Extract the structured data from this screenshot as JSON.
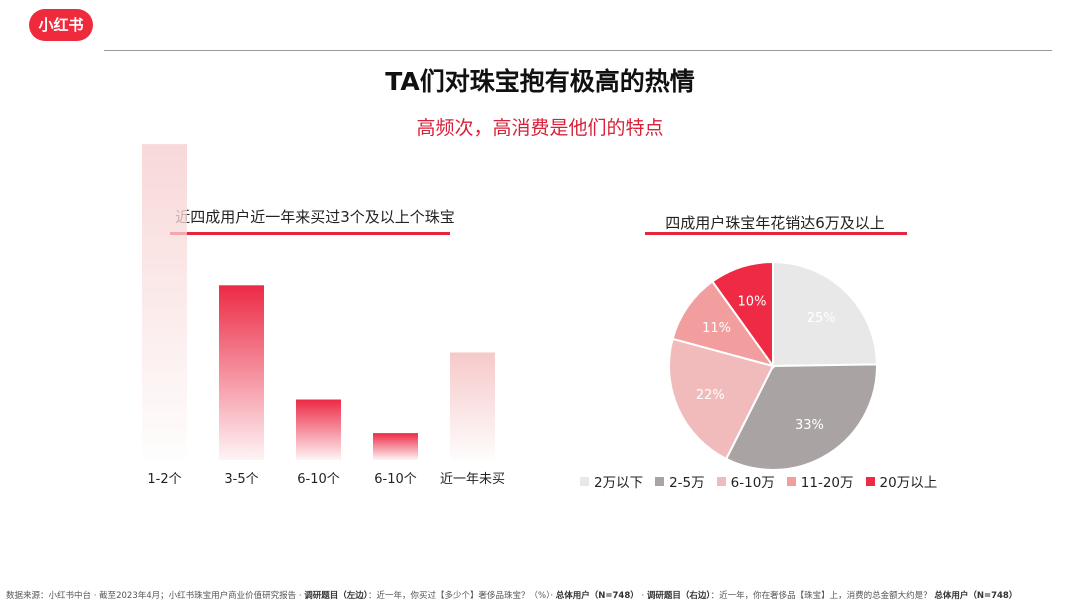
{
  "brand": {
    "logo_text": "小红书",
    "logo_color": "#ee2a3c"
  },
  "header": {
    "title": "TA们对珠宝抱有极高的热情",
    "subtitle": "高频次，高消费是他们的特点"
  },
  "chart_data": [
    {
      "type": "bar",
      "title": "近四成用户近一年来买过3个及以上个珠宝",
      "categories": [
        "1-2个",
        "3-5个",
        "6-10个",
        "6-10个",
        "近一年未买"
      ],
      "values": [
        47,
        26,
        9,
        4,
        16
      ],
      "data_labels": [
        "",
        "",
        "",
        "",
        ""
      ],
      "ylim": [
        0,
        50
      ],
      "grid": false,
      "colors": [
        "#f8d8d8",
        "#ec2a45",
        "#ec2a45",
        "#ec2a45",
        "#f6c9c9"
      ]
    },
    {
      "type": "pie",
      "title": "四成用户珠宝年花销达6万及以上",
      "categories": [
        "2万以下",
        "2-5万",
        "6-10万",
        "11-20万",
        "20万以上"
      ],
      "values": [
        25,
        33,
        22,
        11,
        10
      ],
      "data_labels": [
        "25%",
        "33%",
        "22%",
        "11%",
        "10%"
      ],
      "colors": [
        "#e8e8e8",
        "#aaa3a3",
        "#f2bbbb",
        "#f29e9e",
        "#ee2a45"
      ],
      "label_colors": [
        "#ffffff",
        "#ffffff",
        "#ffffff",
        "#ffffff",
        "#ffffff"
      ],
      "legend_position": "bottom"
    }
  ],
  "footer": {
    "prefix": "数据来源：小红书中台 · 截至2023年4月；小红书珠宝用户商业价值研究报告 · ",
    "left_q_label": "调研题目（左边）",
    "left_q_text": "：近一年，你买过【多少个】奢侈品珠宝？（%）· ",
    "left_total": "总体用户（N=748）",
    "sep": " · ",
    "right_q_label": "调研题目（右边）",
    "right_q_text": "：近一年，你在奢侈品【珠宝】上，消费的总金额大约是？ ",
    "right_total": "总体用户（N=748）"
  }
}
